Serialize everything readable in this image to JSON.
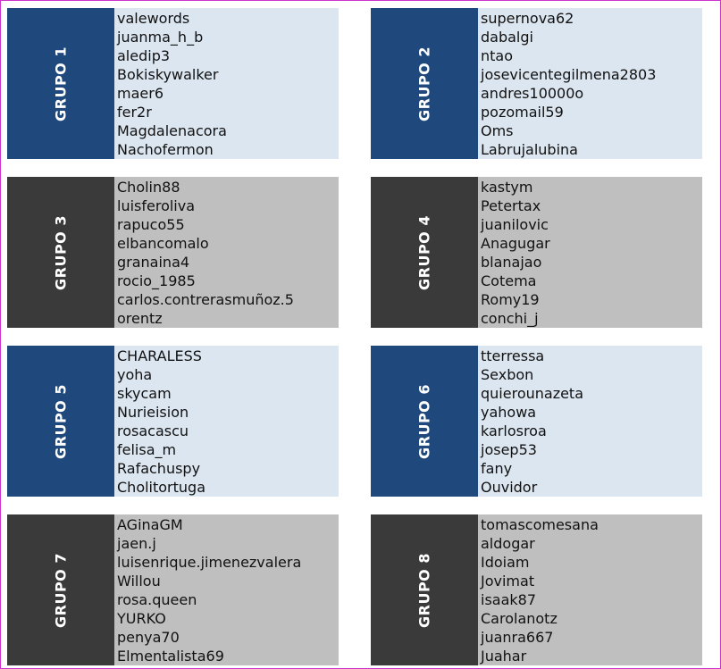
{
  "groups": [
    {
      "label": "GRUPO 1",
      "members": [
        "valewords",
        "juanma_h_b",
        "aledip3",
        "Bokiskywalker",
        "maer6",
        "fer2r",
        "Magdalenacora",
        "Nachofermon"
      ]
    },
    {
      "label": "GRUPO 2",
      "members": [
        "supernova62",
        "dabalgi",
        "ntao",
        "josevicentegilmena2803",
        "andres10000o",
        "pozomail59",
        "Oms",
        "Labrujalubina"
      ]
    },
    {
      "label": "GRUPO 3",
      "members": [
        "Cholin88",
        "luisferoliva",
        "rapuco55",
        "elbancomalo",
        "granaina4",
        "rocio_1985",
        "carlos.contrerasmuñoz.5",
        "orentz"
      ]
    },
    {
      "label": "GRUPO 4",
      "members": [
        "kastym",
        "Petertax",
        "juanilovic",
        "Anagugar",
        "blanajao",
        "Cotema",
        "Romy19",
        "conchi_j"
      ]
    },
    {
      "label": "GRUPO 5",
      "members": [
        "CHARALESS",
        "yoha",
        "skycam",
        "Nurieision",
        "rosacascu",
        "felisa_m",
        "Rafachuspy",
        "Cholitortuga"
      ]
    },
    {
      "label": "GRUPO 6",
      "members": [
        "tterressa",
        "Sexbon",
        "quierounazeta",
        "yahowa",
        "karlosroa",
        "josep53",
        "fany",
        "Ouvidor"
      ]
    },
    {
      "label": "GRUPO 7",
      "members": [
        "AGinaGM",
        "jaen.j",
        "luisenrique.jimenezvalera",
        "Willou",
        "rosa.queen",
        "YURKO",
        "penya70",
        "Elmentalista69"
      ]
    },
    {
      "label": "GRUPO 8",
      "members": [
        "tomascomesana",
        "aldogar",
        "Idoiam",
        "Jovimat",
        "isaak87",
        "Carolanotz",
        "juanra667",
        "Juahar"
      ]
    }
  ]
}
